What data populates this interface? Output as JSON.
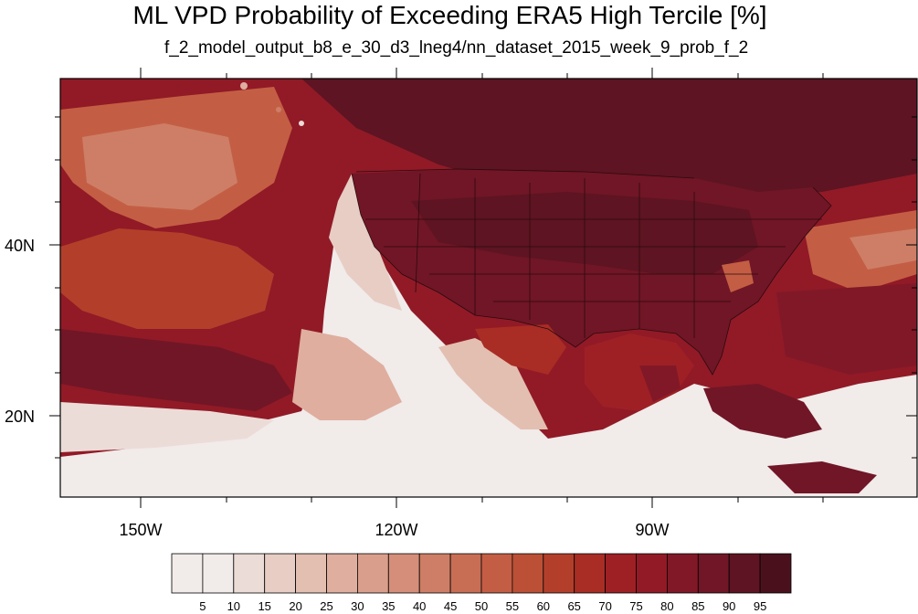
{
  "title": "ML VPD Probability of Exceeding ERA5 High Tercile [%]",
  "subtitle": "f_2_model_output_b8_e_30_d3_lneg4/nn_dataset_2015_week_9_prob_f_2",
  "axes": {
    "lon_labels": [
      "150W",
      "120W",
      "90W"
    ],
    "lat_labels": [
      "40N",
      "20N"
    ],
    "lon_range": [
      -159.3,
      -60
    ],
    "lat_range": [
      10.5,
      59.5
    ]
  },
  "colorbar": {
    "labels": [
      "5",
      "10",
      "15",
      "20",
      "25",
      "30",
      "35",
      "40",
      "45",
      "50",
      "55",
      "60",
      "65",
      "70",
      "75",
      "80",
      "85",
      "90",
      "95"
    ],
    "colors": [
      "#f1ebea",
      "#ecdcd8",
      "#e7cdc4",
      "#e3bfb1",
      "#dfae9f",
      "#d99f8c",
      "#d48e79",
      "#ce7e66",
      "#c86e55",
      "#c35e44",
      "#bb5036",
      "#b33f2b",
      "#a92d24",
      "#9e2025",
      "#911a26",
      "#811827",
      "#711626",
      "#5e1422",
      "#4a111c"
    ]
  }
}
